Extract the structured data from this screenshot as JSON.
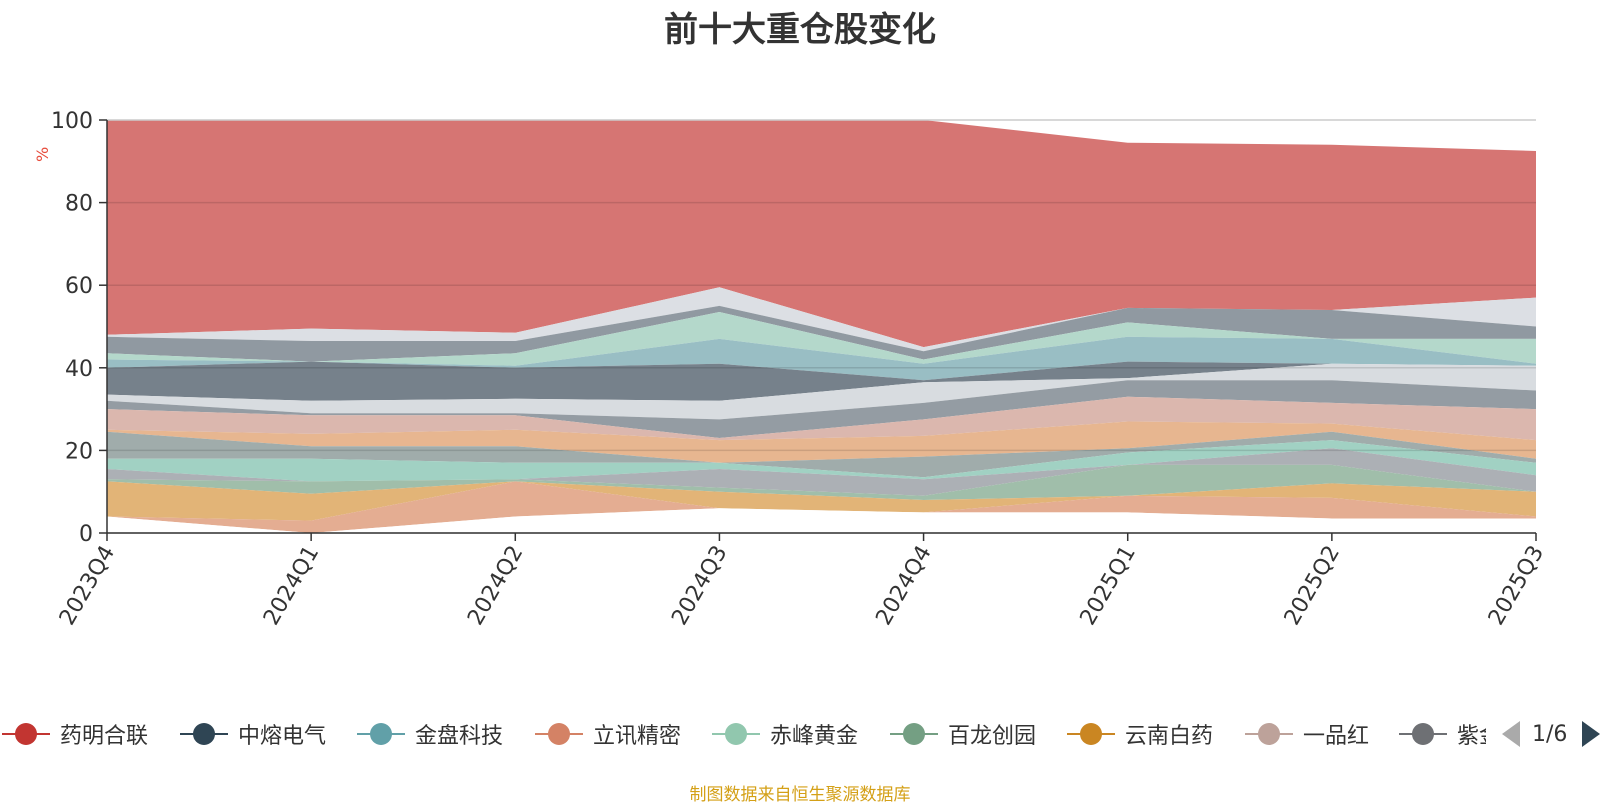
{
  "title": "前十大重仓股变化",
  "footer": "制图数据来自恒生聚源数据库",
  "legend_pager": "1/6",
  "colors": {
    "background": "#ffffff",
    "top_band": "#d46e6b",
    "footer": "#d4a017",
    "pager_active": "#2f4554",
    "pager_inactive": "#aaaaaa"
  },
  "legend_items": [
    {
      "label": "药明合联",
      "color": "#c23531"
    },
    {
      "label": "中熔电气",
      "color": "#2f4554"
    },
    {
      "label": "金盘科技",
      "color": "#61a0a8"
    },
    {
      "label": "立讯精密",
      "color": "#d48265"
    },
    {
      "label": "赤峰黄金",
      "color": "#91c7ae"
    },
    {
      "label": "百龙创园",
      "color": "#749f83"
    },
    {
      "label": "云南白药",
      "color": "#ca8622"
    },
    {
      "label": "一品红",
      "color": "#bda29a"
    },
    {
      "label": "紫金矿业",
      "color": "#6e7074"
    }
  ],
  "chart_data": {
    "type": "area",
    "title": "前十大重仓股变化",
    "ylabel": "%",
    "categories": [
      "2023Q4",
      "2024Q1",
      "2024Q2",
      "2024Q3",
      "2024Q4",
      "2025Q1",
      "2025Q2",
      "2025Q3"
    ],
    "ylim": [
      0,
      100
    ],
    "yticks": [
      0,
      20,
      40,
      60,
      80,
      100
    ],
    "grid": true,
    "upper_band_top": [
      100,
      100,
      100,
      100,
      100,
      94.5,
      94,
      92.5
    ],
    "boundaries": [
      [
        48,
        49.5,
        48.5,
        59.5,
        45,
        54.5,
        54,
        57
      ],
      [
        47.5,
        46.5,
        46.5,
        55,
        44,
        54.5,
        54,
        50
      ],
      [
        43.5,
        41.5,
        43.5,
        53.5,
        42,
        51,
        47,
        47
      ],
      [
        42,
        41.5,
        40.5,
        47,
        41,
        47.5,
        47,
        41
      ],
      [
        40,
        41.5,
        40,
        41,
        37,
        41.5,
        41,
        40.5
      ],
      [
        33.5,
        32,
        32.5,
        32,
        36.5,
        37.5,
        41,
        40.5
      ],
      [
        32,
        29,
        29,
        27.5,
        31.5,
        37,
        37,
        34.5
      ],
      [
        30,
        28.5,
        28.5,
        23,
        27.5,
        33,
        31.5,
        30
      ],
      [
        25,
        24,
        25,
        22.5,
        23.5,
        27,
        26.5,
        22.5
      ],
      [
        24.5,
        21,
        21,
        17,
        18.5,
        20.5,
        24.5,
        18
      ],
      [
        18,
        18,
        17,
        17,
        13.5,
        19.5,
        22.5,
        17
      ],
      [
        15.5,
        12.5,
        13,
        15.5,
        13,
        16.5,
        20.5,
        14
      ],
      [
        13,
        12.5,
        13,
        11,
        9,
        16.5,
        16.5,
        10
      ],
      [
        12.5,
        9.5,
        12.5,
        10,
        8,
        9,
        12,
        10
      ],
      [
        4,
        3,
        12.5,
        6,
        5,
        9,
        8.5,
        4
      ],
      [
        4,
        0,
        4,
        6,
        5,
        5,
        3.5,
        3.5
      ]
    ],
    "band_colors": [
      "#d46e6b",
      "#dadde3",
      "#8a949c",
      "#b0d6c8",
      "#94bac1",
      "#6f7a85",
      "#d6dade",
      "#8e979e",
      "#d9b3aa",
      "#e6b28a",
      "#9ba8a6",
      "#9ccfc0",
      "#a8acb1",
      "#9bbba5",
      "#e0b070",
      "#e3a98c",
      "#ffffff"
    ]
  }
}
